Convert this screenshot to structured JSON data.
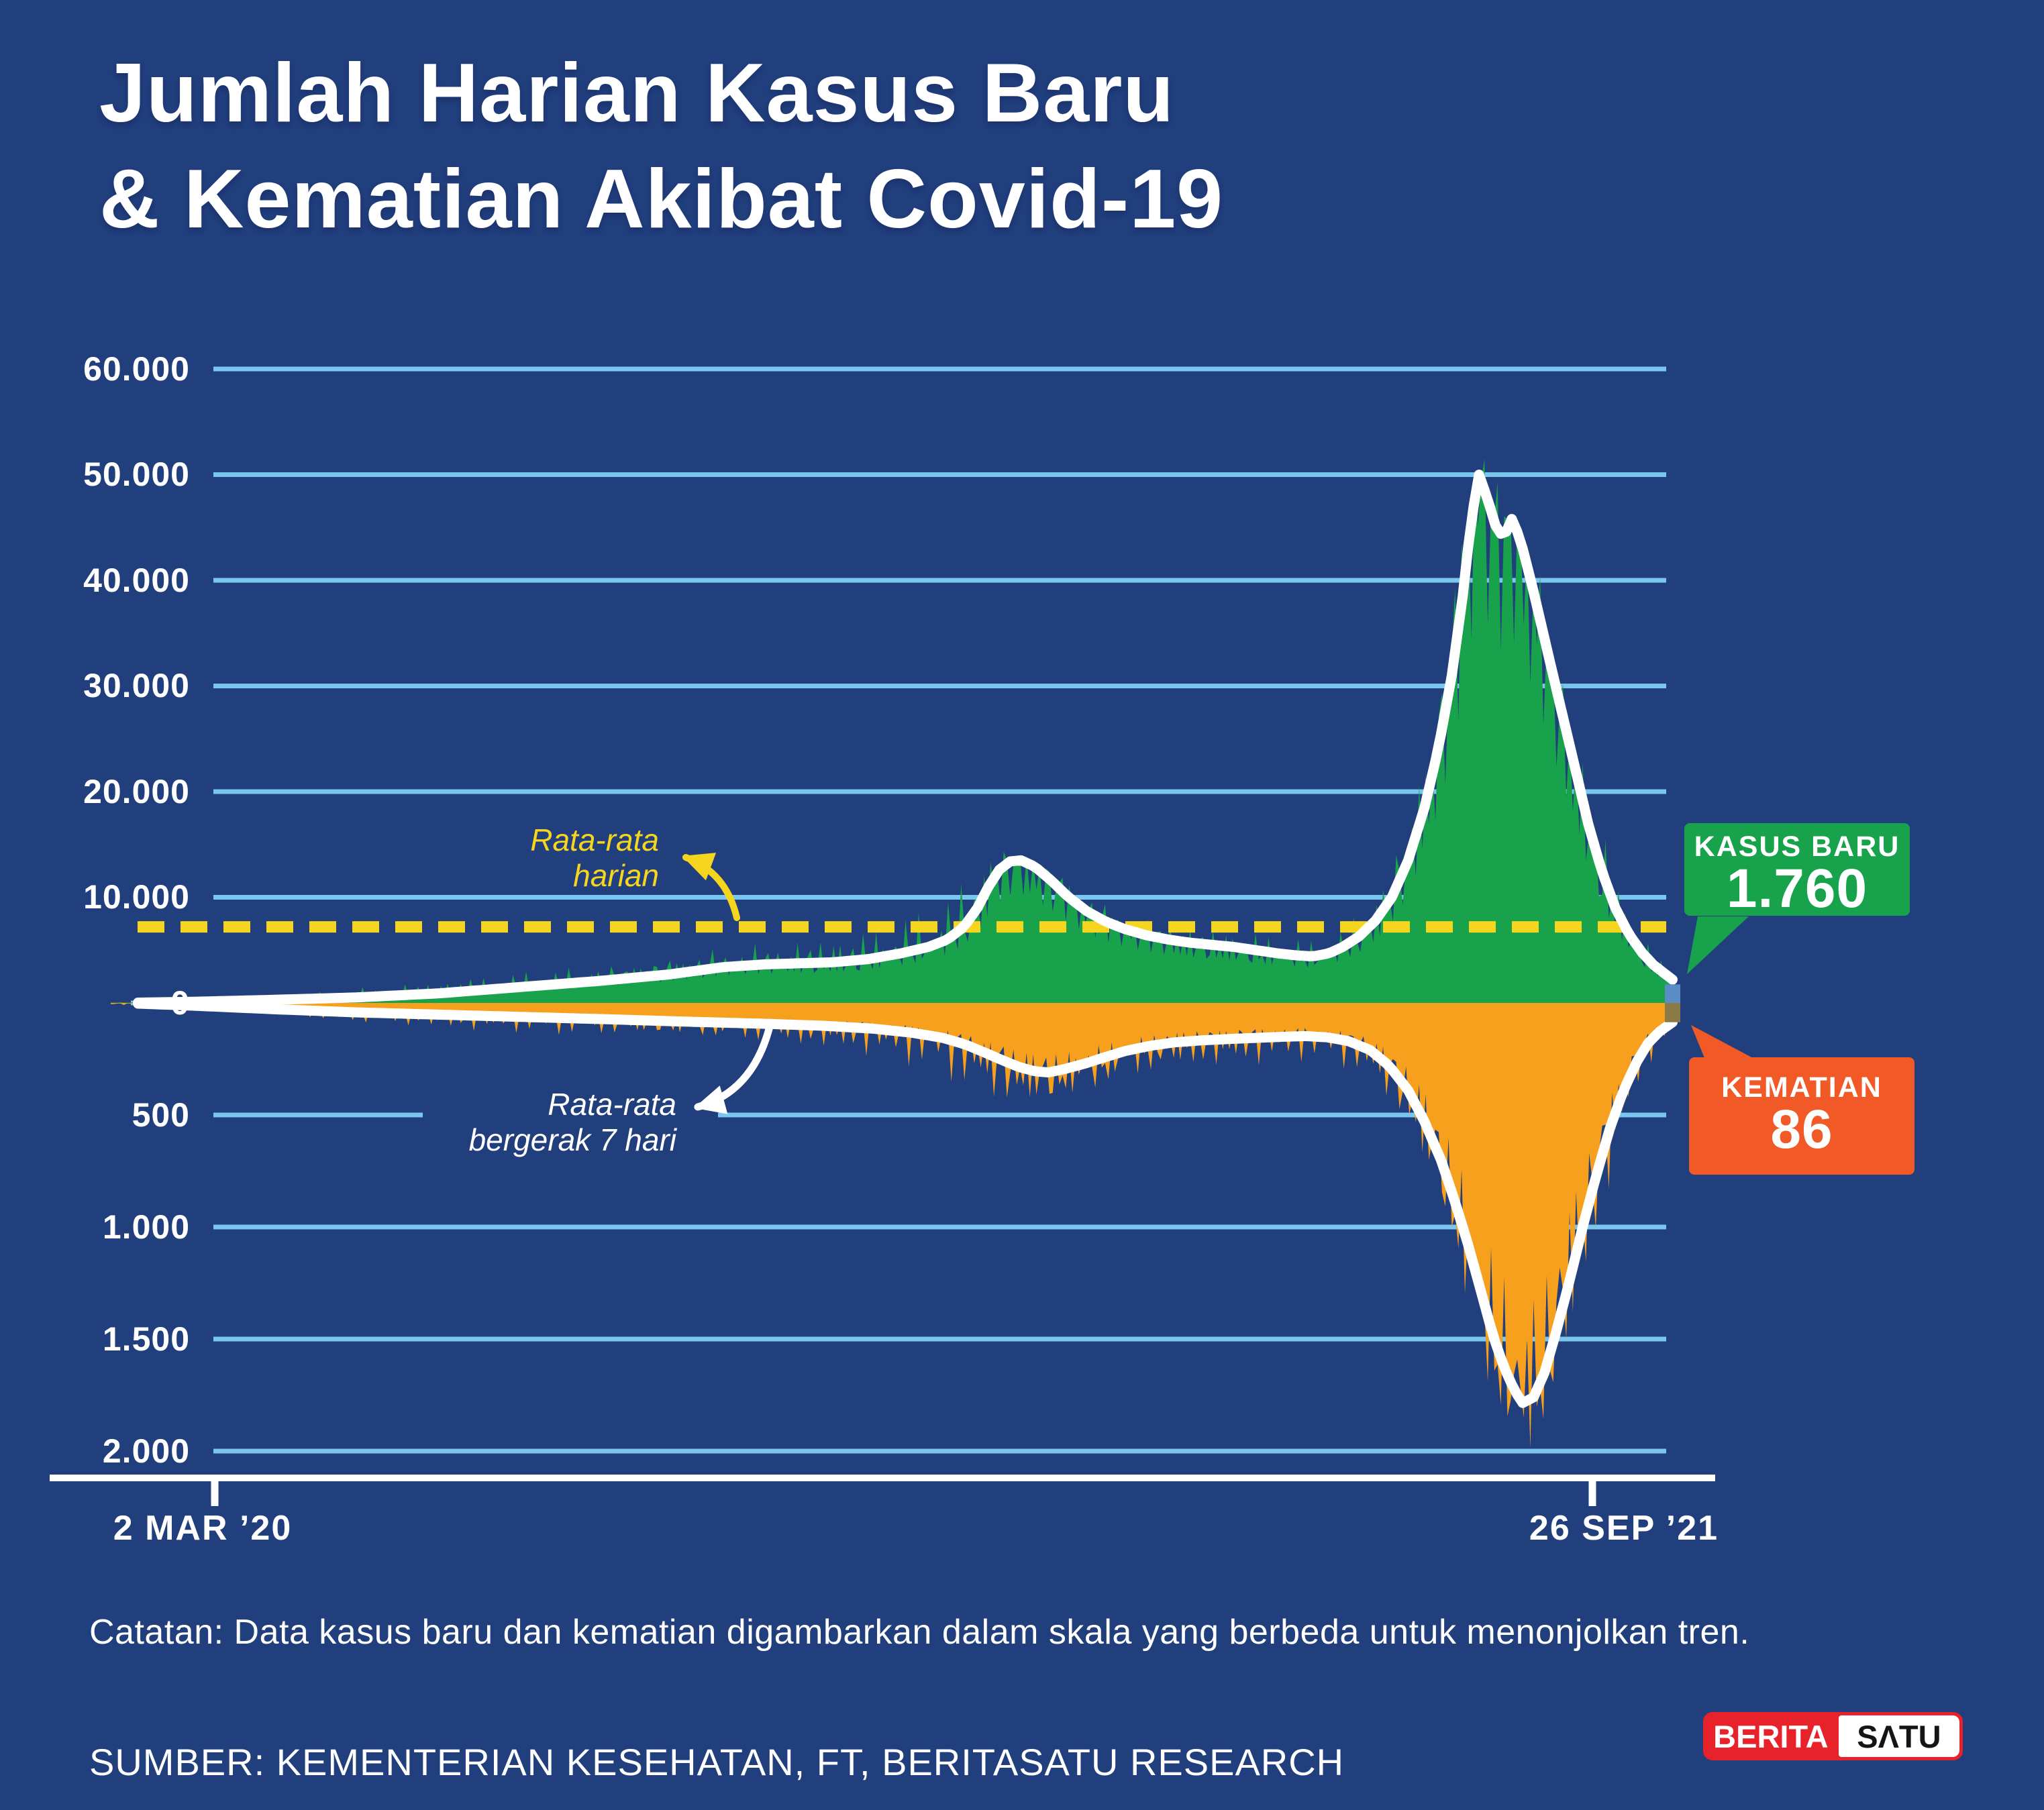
{
  "title": {
    "line1": "Jumlah Harian Kasus Baru",
    "line2": "& Kematian Akibat Covid-19"
  },
  "y_axis_cases": {
    "labels": [
      "60.000",
      "50.000",
      "40.000",
      "30.000",
      "20.000",
      "10.000",
      "0"
    ]
  },
  "y_axis_deaths": {
    "labels": [
      "500",
      "1.000",
      "1.500",
      "2.000"
    ]
  },
  "x_axis": {
    "start_label": "2 MAR ’20",
    "end_label": "26 SEP ’21"
  },
  "annotations": {
    "daily_average": {
      "line1": "Rata-rata",
      "line2": "harian"
    },
    "moving_average": {
      "line1": "Rata-rata",
      "line2": "bergerak 7 hari"
    }
  },
  "callouts": {
    "cases": {
      "label": "KASUS BARU",
      "value": "1.760"
    },
    "deaths": {
      "label": "KEMATIAN",
      "value": "86"
    }
  },
  "note": "Catatan: Data kasus baru dan kematian digambarkan dalam skala yang berbeda untuk menonjolkan tren.",
  "source": "SUMBER: KEMENTERIAN KESEHATAN, FT, BERITASATU RESEARCH",
  "logo": {
    "part1": "BERITA",
    "part2": "SΛTU"
  },
  "colors": {
    "background": "#213E7D",
    "gridline": "#7AC6EF",
    "cases_fill": "#17A24B",
    "deaths_fill": "#F6A01E",
    "average_dash": "#F6D51F",
    "ma_line": "#FFFFFF",
    "cases_bubble": "#18A24B",
    "deaths_bubble": "#F15A26",
    "highlight_cases_bar": "#5B8CC6",
    "highlight_deaths_bar": "#8C7A46",
    "logo_red": "#E7222B",
    "axis": "#FFFFFF"
  },
  "chart_data": {
    "type": "area",
    "title": "Jumlah Harian Kasus Baru & Kematian Akibat Covid-19",
    "x": {
      "start": "2 MAR '20",
      "end": "26 SEP '21",
      "days": 573
    },
    "dual_scale_note": "Kasus baru dan kematian digambarkan dalam skala yang berbeda",
    "cases": {
      "axis_max": 60000,
      "gridline_step": 10000,
      "daily_average_line": 7200,
      "last_daily_value": 1760,
      "peak_daily": 56800,
      "peak_moving_average": 50000,
      "ma_keypoints": [
        [
          10,
          30
        ],
        [
          30,
          110
        ],
        [
          60,
          300
        ],
        [
          90,
          520
        ],
        [
          120,
          900
        ],
        [
          150,
          1500
        ],
        [
          180,
          2100
        ],
        [
          205,
          2700
        ],
        [
          225,
          3400
        ],
        [
          240,
          3650
        ],
        [
          252,
          3750
        ],
        [
          265,
          3850
        ],
        [
          278,
          4150
        ],
        [
          290,
          4700
        ],
        [
          300,
          5300
        ],
        [
          307,
          6000
        ],
        [
          313,
          7200
        ],
        [
          318,
          9000
        ],
        [
          322,
          11000
        ],
        [
          326,
          12600
        ],
        [
          330,
          13400
        ],
        [
          334,
          13500
        ],
        [
          339,
          12900
        ],
        [
          345,
          11600
        ],
        [
          351,
          10100
        ],
        [
          358,
          8700
        ],
        [
          365,
          7700
        ],
        [
          372,
          7000
        ],
        [
          380,
          6400
        ],
        [
          388,
          6000
        ],
        [
          396,
          5700
        ],
        [
          404,
          5500
        ],
        [
          412,
          5300
        ],
        [
          420,
          5000
        ],
        [
          428,
          4700
        ],
        [
          435,
          4500
        ],
        [
          441,
          4400
        ],
        [
          447,
          4700
        ],
        [
          452,
          5300
        ],
        [
          458,
          6300
        ],
        [
          464,
          7800
        ],
        [
          470,
          10000
        ],
        [
          476,
          13500
        ],
        [
          482,
          18500
        ],
        [
          487,
          24000
        ],
        [
          492,
          31000
        ],
        [
          496,
          38500
        ],
        [
          499,
          45500
        ],
        [
          502,
          50000
        ],
        [
          505,
          47800
        ],
        [
          508,
          45200
        ],
        [
          511,
          44000
        ],
        [
          514,
          45800
        ],
        [
          517,
          44000
        ],
        [
          521,
          40000
        ],
        [
          526,
          34500
        ],
        [
          531,
          29000
        ],
        [
          537,
          22500
        ],
        [
          542,
          17000
        ],
        [
          547,
          12500
        ],
        [
          552,
          9000
        ],
        [
          557,
          6500
        ],
        [
          562,
          4700
        ],
        [
          566,
          3600
        ],
        [
          570,
          2800
        ],
        [
          573,
          2200
        ]
      ],
      "daily_envelope_keypoints": [
        [
          10,
          70
        ],
        [
          60,
          650
        ],
        [
          120,
          1900
        ],
        [
          180,
          3400
        ],
        [
          225,
          5200
        ],
        [
          252,
          5600
        ],
        [
          278,
          6300
        ],
        [
          300,
          8200
        ],
        [
          313,
          10800
        ],
        [
          322,
          14000
        ],
        [
          330,
          14600
        ],
        [
          339,
          14000
        ],
        [
          351,
          12000
        ],
        [
          365,
          9300
        ],
        [
          380,
          7800
        ],
        [
          396,
          7000
        ],
        [
          412,
          6600
        ],
        [
          428,
          6000
        ],
        [
          441,
          5600
        ],
        [
          452,
          6800
        ],
        [
          464,
          9800
        ],
        [
          476,
          17000
        ],
        [
          487,
          30000
        ],
        [
          496,
          47000
        ],
        [
          500,
          56800
        ],
        [
          503,
          54500
        ],
        [
          507,
          50500
        ],
        [
          511,
          48500
        ],
        [
          515,
          48000
        ],
        [
          519,
          46000
        ],
        [
          524,
          41000
        ],
        [
          530,
          34000
        ],
        [
          537,
          26500
        ],
        [
          544,
          19000
        ],
        [
          551,
          12500
        ],
        [
          558,
          8000
        ],
        [
          564,
          5400
        ],
        [
          569,
          3900
        ],
        [
          573,
          2600
        ]
      ]
    },
    "deaths": {
      "axis_max": 2000,
      "gridline_step": 500,
      "inverted": true,
      "last_daily_value": 86,
      "peak_daily": 2060,
      "peak_moving_average": 1785,
      "ma_keypoints": [
        [
          10,
          3
        ],
        [
          30,
          12
        ],
        [
          60,
          28
        ],
        [
          90,
          42
        ],
        [
          120,
          52
        ],
        [
          150,
          62
        ],
        [
          180,
          72
        ],
        [
          210,
          83
        ],
        [
          240,
          93
        ],
        [
          262,
          102
        ],
        [
          280,
          115
        ],
        [
          294,
          133
        ],
        [
          305,
          155
        ],
        [
          313,
          183
        ],
        [
          320,
          218
        ],
        [
          327,
          255
        ],
        [
          333,
          285
        ],
        [
          339,
          305
        ],
        [
          344,
          310
        ],
        [
          350,
          295
        ],
        [
          357,
          272
        ],
        [
          364,
          245
        ],
        [
          372,
          215
        ],
        [
          381,
          192
        ],
        [
          390,
          176
        ],
        [
          400,
          167
        ],
        [
          410,
          161
        ],
        [
          420,
          156
        ],
        [
          430,
          151
        ],
        [
          438,
          148
        ],
        [
          446,
          153
        ],
        [
          454,
          170
        ],
        [
          462,
          210
        ],
        [
          469,
          280
        ],
        [
          476,
          390
        ],
        [
          482,
          530
        ],
        [
          488,
          700
        ],
        [
          493,
          880
        ],
        [
          498,
          1080
        ],
        [
          503,
          1300
        ],
        [
          507,
          1480
        ],
        [
          511,
          1620
        ],
        [
          515,
          1730
        ],
        [
          518,
          1785
        ],
        [
          522,
          1760
        ],
        [
          526,
          1650
        ],
        [
          530,
          1480
        ],
        [
          535,
          1250
        ],
        [
          540,
          1000
        ],
        [
          545,
          770
        ],
        [
          550,
          560
        ],
        [
          555,
          390
        ],
        [
          560,
          260
        ],
        [
          564,
          180
        ],
        [
          568,
          130
        ],
        [
          571,
          103
        ],
        [
          573,
          86
        ]
      ],
      "daily_envelope_keypoints": [
        [
          10,
          8
        ],
        [
          60,
          60
        ],
        [
          120,
          105
        ],
        [
          180,
          135
        ],
        [
          240,
          170
        ],
        [
          280,
          215
        ],
        [
          305,
          290
        ],
        [
          320,
          400
        ],
        [
          333,
          470
        ],
        [
          344,
          480
        ],
        [
          357,
          430
        ],
        [
          372,
          350
        ],
        [
          390,
          290
        ],
        [
          410,
          265
        ],
        [
          430,
          245
        ],
        [
          446,
          235
        ],
        [
          462,
          320
        ],
        [
          476,
          560
        ],
        [
          488,
          950
        ],
        [
          498,
          1450
        ],
        [
          507,
          1850
        ],
        [
          513,
          2000
        ],
        [
          517,
          2060
        ],
        [
          521,
          2030
        ],
        [
          526,
          1920
        ],
        [
          532,
          1680
        ],
        [
          539,
          1350
        ],
        [
          546,
          980
        ],
        [
          553,
          640
        ],
        [
          559,
          400
        ],
        [
          565,
          250
        ],
        [
          570,
          170
        ],
        [
          573,
          150
        ]
      ]
    }
  }
}
